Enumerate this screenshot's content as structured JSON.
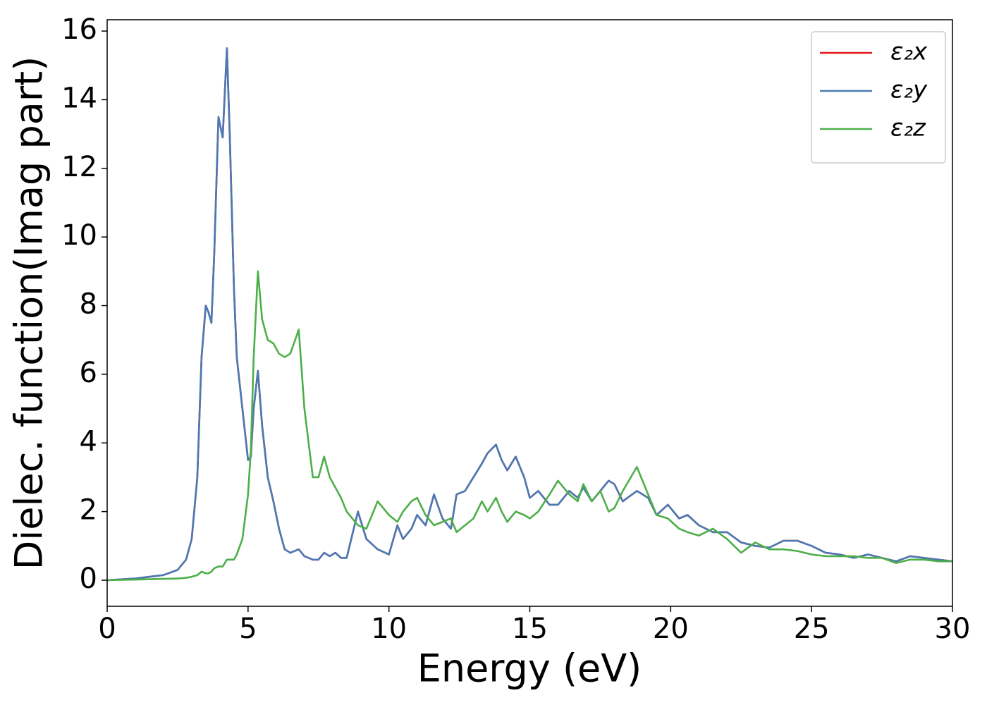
{
  "chart_data": {
    "type": "line",
    "xlabel": "Energy (eV)",
    "ylabel": "Dielec. function(Imag part)",
    "xlim": [
      0,
      30
    ],
    "xticks": [
      0,
      5,
      10,
      15,
      20,
      25,
      30
    ],
    "ylim": [
      -0.76,
      16.33
    ],
    "yticks": [
      0,
      2,
      4,
      6,
      8,
      10,
      12,
      14,
      16
    ],
    "grid": false,
    "legend": "upper right",
    "x": [
      0,
      1,
      2,
      2.5,
      2.8,
      3.0,
      3.2,
      3.35,
      3.5,
      3.6,
      3.7,
      3.8,
      3.95,
      4.1,
      4.25,
      4.35,
      4.5,
      4.6,
      4.8,
      5.0,
      5.1,
      5.2,
      5.35,
      5.5,
      5.7,
      5.9,
      6.1,
      6.3,
      6.5,
      6.8,
      7.0,
      7.3,
      7.5,
      7.7,
      7.9,
      8.1,
      8.3,
      8.5,
      8.9,
      9.2,
      9.6,
      10.0,
      10.3,
      10.5,
      10.8,
      11.0,
      11.3,
      11.6,
      11.9,
      12.2,
      12.4,
      12.7,
      13.0,
      13.3,
      13.5,
      13.8,
      14.0,
      14.2,
      14.5,
      14.8,
      15.0,
      15.3,
      15.7,
      16.0,
      16.4,
      16.7,
      16.9,
      17.2,
      17.5,
      17.8,
      18.0,
      18.3,
      18.8,
      19.2,
      19.5,
      19.9,
      20.3,
      20.6,
      21.0,
      21.5,
      22.0,
      22.5,
      23.0,
      23.5,
      24.0,
      24.5,
      25.0,
      25.5,
      26.0,
      26.5,
      27.0,
      27.5,
      28.0,
      28.5,
      29.0,
      29.5,
      30
    ],
    "series": [
      {
        "name": "ε₂x",
        "color": "#e41a1c",
        "values": [
          0,
          0.05,
          0.15,
          0.3,
          0.6,
          1.2,
          3,
          6.5,
          8.0,
          7.8,
          7.5,
          9.5,
          13.5,
          12.9,
          15.5,
          13,
          8.5,
          6.5,
          5,
          3.5,
          3.6,
          5,
          6.1,
          4.5,
          3,
          2.3,
          1.5,
          0.9,
          0.8,
          0.9,
          0.7,
          0.6,
          0.6,
          0.8,
          0.7,
          0.8,
          0.65,
          0.65,
          2.0,
          1.2,
          0.9,
          0.75,
          1.6,
          1.2,
          1.5,
          1.9,
          1.6,
          2.5,
          1.8,
          1.5,
          2.5,
          2.6,
          3.0,
          3.4,
          3.7,
          3.95,
          3.5,
          3.2,
          3.6,
          3.0,
          2.4,
          2.6,
          2.2,
          2.2,
          2.6,
          2.4,
          2.7,
          2.3,
          2.6,
          2.9,
          2.8,
          2.3,
          2.6,
          2.4,
          1.9,
          2.2,
          1.8,
          1.9,
          1.6,
          1.4,
          1.4,
          1.1,
          1.0,
          0.95,
          1.15,
          1.15,
          1.0,
          0.8,
          0.75,
          0.65,
          0.75,
          0.65,
          0.55,
          0.7,
          0.65,
          0.6,
          0.55
        ]
      },
      {
        "name": "ε₂y",
        "color": "#4a7ab5",
        "values": [
          0,
          0.05,
          0.15,
          0.3,
          0.6,
          1.2,
          3,
          6.5,
          8.0,
          7.8,
          7.5,
          9.5,
          13.5,
          12.9,
          15.5,
          13,
          8.5,
          6.5,
          5,
          3.5,
          3.6,
          5,
          6.1,
          4.5,
          3,
          2.3,
          1.5,
          0.9,
          0.8,
          0.9,
          0.7,
          0.6,
          0.6,
          0.8,
          0.7,
          0.8,
          0.65,
          0.65,
          2.0,
          1.2,
          0.9,
          0.75,
          1.6,
          1.2,
          1.5,
          1.9,
          1.6,
          2.5,
          1.8,
          1.5,
          2.5,
          2.6,
          3.0,
          3.4,
          3.7,
          3.95,
          3.5,
          3.2,
          3.6,
          3.0,
          2.4,
          2.6,
          2.2,
          2.2,
          2.6,
          2.4,
          2.7,
          2.3,
          2.6,
          2.9,
          2.8,
          2.3,
          2.6,
          2.4,
          1.9,
          2.2,
          1.8,
          1.9,
          1.6,
          1.4,
          1.4,
          1.1,
          1.0,
          0.95,
          1.15,
          1.15,
          1.0,
          0.8,
          0.75,
          0.65,
          0.75,
          0.65,
          0.55,
          0.7,
          0.65,
          0.6,
          0.55
        ]
      },
      {
        "name": "ε₂z",
        "color": "#4daf4a",
        "values": [
          0,
          0.02,
          0.04,
          0.05,
          0.07,
          0.1,
          0.15,
          0.25,
          0.2,
          0.2,
          0.25,
          0.35,
          0.4,
          0.4,
          0.6,
          0.6,
          0.6,
          0.75,
          1.2,
          2.5,
          3.8,
          6.5,
          9.0,
          7.6,
          7.0,
          6.9,
          6.6,
          6.5,
          6.6,
          7.3,
          5,
          3.0,
          3.0,
          3.6,
          3.0,
          2.7,
          2.4,
          2.0,
          1.6,
          1.5,
          2.3,
          1.9,
          1.7,
          2.0,
          2.3,
          2.4,
          1.9,
          1.6,
          1.7,
          1.8,
          1.4,
          1.6,
          1.8,
          2.3,
          2.0,
          2.4,
          2.0,
          1.7,
          2.0,
          1.9,
          1.8,
          2.0,
          2.5,
          2.9,
          2.5,
          2.3,
          2.8,
          2.3,
          2.6,
          2.0,
          2.1,
          2.6,
          3.3,
          2.5,
          1.9,
          1.8,
          1.5,
          1.4,
          1.3,
          1.5,
          1.2,
          0.8,
          1.1,
          0.9,
          0.9,
          0.85,
          0.75,
          0.7,
          0.7,
          0.7,
          0.65,
          0.65,
          0.5,
          0.6,
          0.6,
          0.55,
          0.55
        ]
      }
    ]
  }
}
